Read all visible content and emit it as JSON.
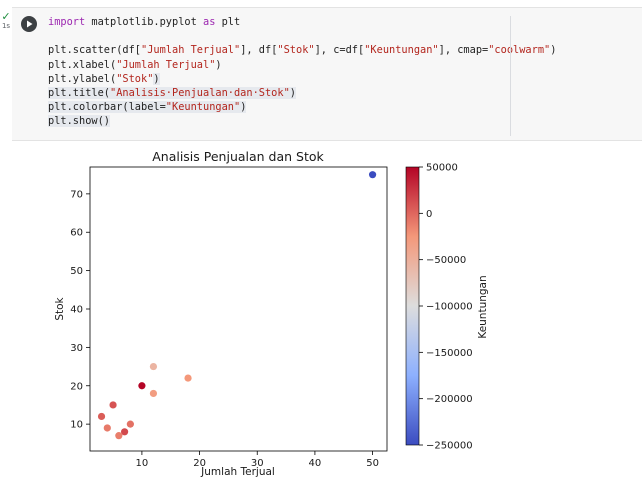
{
  "cell": {
    "exec_status": "✓",
    "exec_time": "1s",
    "code_lines": [
      [
        {
          "t": "import",
          "c": "kw"
        },
        {
          "t": " matplotlib.pyplot "
        },
        {
          "t": "as",
          "c": "kw"
        },
        {
          "t": " plt"
        }
      ],
      [],
      [
        {
          "t": "plt.scatter(df["
        },
        {
          "t": "\"Jumlah Terjual\"",
          "c": "str"
        },
        {
          "t": "], df["
        },
        {
          "t": "\"Stok\"",
          "c": "str"
        },
        {
          "t": "], c=df["
        },
        {
          "t": "\"Keuntungan\"",
          "c": "str"
        },
        {
          "t": "], cmap="
        },
        {
          "t": "\"coolwarm\"",
          "c": "str"
        },
        {
          "t": ")"
        }
      ],
      [
        {
          "t": "plt.xlabel("
        },
        {
          "t": "\"Jumlah Terjual\"",
          "c": "str"
        },
        {
          "t": ")"
        }
      ],
      [
        {
          "t": "plt.ylabel("
        },
        {
          "t": "\"Stok\"",
          "c": "str"
        },
        {
          "t": ")",
          "c": "hl"
        }
      ],
      [
        {
          "t": "plt.title(",
          "c": "hl"
        },
        {
          "t": "\"Analisis·Penjualan·dan·Stok\"",
          "c": "str hl"
        },
        {
          "t": ")",
          "c": "hl"
        }
      ],
      [
        {
          "t": "plt.colorbar(label=",
          "c": "hl"
        },
        {
          "t": "\"Keuntungan\"",
          "c": "str hl"
        },
        {
          "t": ")",
          "c": "hl"
        }
      ],
      [
        {
          "t": "plt.show()",
          "c": "hl"
        }
      ]
    ]
  },
  "colors": {
    "coolwarm_low": "#3b4cc0",
    "coolwarm_mid": "#dddddd",
    "coolwarm_high": "#b40426",
    "cell_bg": "#f7f7f7"
  },
  "icons": {
    "run": "play-circle-icon",
    "output": "output-toggle-icon"
  },
  "chart_data": {
    "type": "scatter",
    "title": "Analisis Penjualan dan Stok",
    "xlabel": "Jumlah Terjual",
    "ylabel": "Stok",
    "xlim": [
      1,
      52.5
    ],
    "ylim": [
      3,
      77
    ],
    "xticks": [
      10,
      20,
      30,
      40,
      50
    ],
    "yticks": [
      10,
      20,
      30,
      40,
      50,
      60,
      70
    ],
    "colorbar": {
      "label": "Keuntungan",
      "cmap": "coolwarm",
      "vmin": -250000,
      "vmax": 50000,
      "ticks": [
        50000,
        0,
        -50000,
        -100000,
        -150000,
        -200000,
        -250000
      ],
      "tick_labels": [
        "50000",
        "0",
        "−50000",
        "−100000",
        "−150000",
        "−200000",
        "−250000"
      ]
    },
    "points": [
      {
        "x": 50,
        "y": 75,
        "c": -250000
      },
      {
        "x": 10,
        "y": 20,
        "c": 50000
      },
      {
        "x": 12,
        "y": 25,
        "c": -55000
      },
      {
        "x": 18,
        "y": 22,
        "c": -25000
      },
      {
        "x": 12,
        "y": 18,
        "c": -30000
      },
      {
        "x": 5,
        "y": 15,
        "c": 10000
      },
      {
        "x": 3,
        "y": 12,
        "c": 5000
      },
      {
        "x": 8,
        "y": 10,
        "c": -5000
      },
      {
        "x": 4,
        "y": 9,
        "c": -10000
      },
      {
        "x": 7,
        "y": 8,
        "c": 15000
      },
      {
        "x": 6,
        "y": 7,
        "c": -12000
      }
    ]
  }
}
